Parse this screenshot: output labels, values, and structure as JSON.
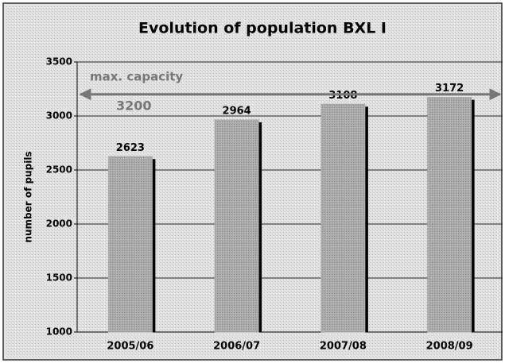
{
  "chart_data": {
    "type": "bar",
    "title": "Evolution of population BXL I",
    "y_label": "number of pupils",
    "categories": [
      "2005/06",
      "2006/07",
      "2007/08",
      "2008/09"
    ],
    "values": [
      2623,
      2964,
      3108,
      3172
    ],
    "color": "#a9a9a9",
    "ylim": [
      1000,
      3500
    ],
    "yticks": [
      1000,
      1500,
      2000,
      2500,
      3000,
      3500
    ],
    "grid": true,
    "capacity": {
      "label": "max. capacity",
      "value": 3200
    }
  }
}
